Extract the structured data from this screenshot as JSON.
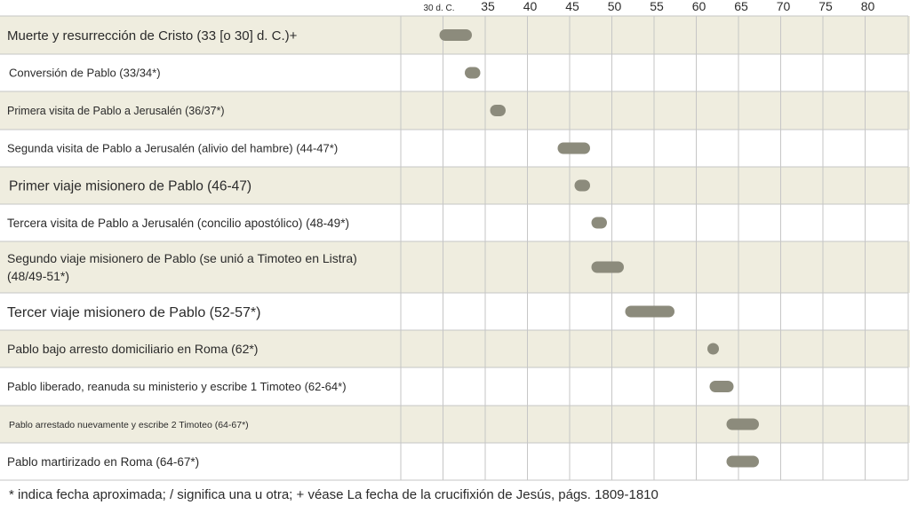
{
  "chart_data": {
    "type": "timeline",
    "title": "",
    "xlabel": "",
    "ylabel": "",
    "x_unit": "d. C.",
    "xlim": [
      25,
      80
    ],
    "grid": true,
    "ticks": [
      {
        "value": 30,
        "label": "30 d. C."
      },
      {
        "value": 35,
        "label": "35"
      },
      {
        "value": 40,
        "label": "40"
      },
      {
        "value": 45,
        "label": "45"
      },
      {
        "value": 50,
        "label": "50"
      },
      {
        "value": 55,
        "label": "55"
      },
      {
        "value": 60,
        "label": "60"
      },
      {
        "value": 65,
        "label": "65"
      },
      {
        "value": 70,
        "label": "70"
      },
      {
        "value": 75,
        "label": "75"
      },
      {
        "value": 80,
        "label": "80"
      }
    ],
    "events": [
      {
        "label": "Muerte y resurrección de Cristo (33 [o 30] d. C.)+",
        "start": 30,
        "end": 33
      },
      {
        "label": "Conversión de Pablo (33/34*)",
        "start": 33,
        "end": 34
      },
      {
        "label": "Primera visita de Pablo a Jerusalén (36/37*)",
        "start": 36,
        "end": 37
      },
      {
        "label": "Segunda visita de Pablo a Jerusalén (alivio del hambre) (44-47*)",
        "start": 44,
        "end": 47
      },
      {
        "label": "Primer viaje misionero de Pablo (46-47)",
        "start": 46,
        "end": 47
      },
      {
        "label": "Tercera visita de Pablo a Jerusalén (concilio apostólico) (48-49*)",
        "start": 48,
        "end": 49
      },
      {
        "label": [
          "Segundo viaje misionero de Pablo (se unió a Timoteo en Listra)",
          "(48/49-51*)"
        ],
        "start": 48,
        "end": 51
      },
      {
        "label": "Tercer viaje misionero de Pablo (52-57*)",
        "start": 52,
        "end": 57
      },
      {
        "label": "Pablo bajo arresto domiciliario en Roma (62*)",
        "start": 62,
        "end": 62
      },
      {
        "label": "Pablo liberado, reanuda su ministerio y escribe 1 Timoteo (62-64*)",
        "start": 62,
        "end": 64
      },
      {
        "label": "Pablo arrestado nuevamente y escribe 2 Timoteo (64-67*)",
        "start": 64,
        "end": 67
      },
      {
        "label": "Pablo martirizado en Roma (64-67*)",
        "start": 64,
        "end": 67
      }
    ],
    "footnote": "* indica fecha aproximada; / significa una u otra; + véase La fecha de la crucifixión de Jesús, págs. 1809-1810"
  },
  "colors": {
    "band": "#efeddf",
    "plain": "#ffffff",
    "grid": "#c6c6c6",
    "bar": "#8c8b7c"
  }
}
